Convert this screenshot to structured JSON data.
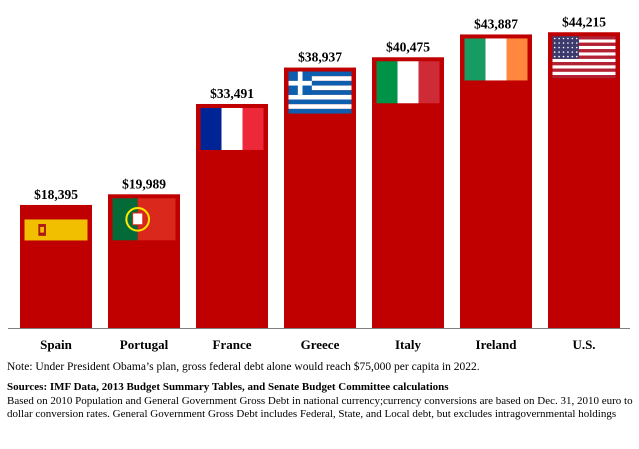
{
  "chart_data": {
    "type": "bar",
    "categories": [
      "Spain",
      "Portugal",
      "France",
      "Greece",
      "Italy",
      "Ireland",
      "U.S."
    ],
    "values": [
      18395,
      19989,
      33491,
      38937,
      40475,
      43887,
      44215
    ],
    "value_labels": [
      "$18,395",
      "$19,989",
      "$33,491",
      "$38,937",
      "$40,475",
      "$43,887",
      "$44,215"
    ],
    "flags": [
      "spain-flag",
      "portugal-flag",
      "france-flag",
      "greece-flag",
      "italy-flag",
      "ireland-flag",
      "us-flag"
    ],
    "bar_color": "#c00000",
    "ylim": [
      0,
      45000
    ],
    "grid": false,
    "legend": "none"
  },
  "notes": {
    "note": "Note: Under President Obama’s plan, gross federal debt alone would reach $75,000 per capita in 2022.",
    "sources_title": "Sources: IMF Data, 2013 Budget Summary Tables, and Senate Budget Committee calculations",
    "sources_detail": "Based on 2010 Population and General Government Gross Debt in national currency;currency conversions are based on Dec. 31, 2010 euro to dollar conversion rates. General Government Gross Debt includes Federal, State, and Local debt, but excludes intragovernmental holdings"
  }
}
